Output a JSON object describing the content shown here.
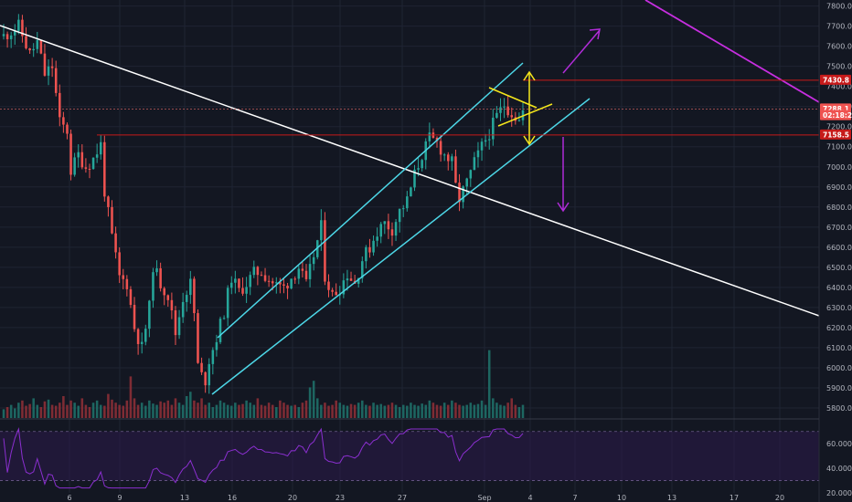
{
  "chart_data": {
    "type": "candlestick",
    "colors": {
      "background": "#131722",
      "up": "#26a69a",
      "down": "#ef5350",
      "up_volume": "#1f6f68",
      "down_volume": "#8c2f36",
      "grid": "#1f2433",
      "trendline": "#ffffff",
      "channel": "#4dd8e8",
      "triangle": "#f5e61b",
      "level": "#c61a1a",
      "arrow": "#b02cd8",
      "rsi_line": "#8b2fd0",
      "rsi_band": "#2b1a4a"
    },
    "price_axis": {
      "ticks": [
        "7800.0",
        "7700.0",
        "7600.0",
        "7500.0",
        "7400.0",
        "7300.0",
        "7200.0",
        "7100.0",
        "7000.0",
        "6900.0",
        "6800.0",
        "6700.0",
        "6600.0",
        "6500.0",
        "6400.0",
        "6300.0",
        "6200.0",
        "6100.0",
        "6000.0",
        "5900.0",
        "5800.0"
      ],
      "range": [
        5750,
        7830
      ]
    },
    "rsi_axis": {
      "ticks": [
        "60.0000",
        "40.0000",
        "20.0000"
      ],
      "range": [
        20,
        75
      ]
    },
    "x_axis": {
      "ticks": [
        "6",
        "9",
        "13",
        "16",
        "20",
        "23",
        "27",
        "Sep",
        "4",
        "7",
        "10",
        "13",
        "17",
        "20"
      ]
    },
    "price_tags": [
      {
        "label": "7430.8",
        "value": 7430.8,
        "color": "#c61a1a"
      },
      {
        "label": "7288.1",
        "value": 7288.1,
        "color": "#ef5350"
      },
      {
        "label": "02:18:28",
        "value": 7255,
        "color": "#ef5350"
      },
      {
        "label": "7158.5",
        "value": 7158.5,
        "color": "#c61a1a"
      }
    ],
    "levels": [
      7430.8,
      7288.1,
      7158.5
    ],
    "price_path": [
      [
        0,
        7650
      ],
      [
        4,
        7700
      ],
      [
        7,
        7560
      ],
      [
        9,
        7620
      ],
      [
        11,
        7460
      ],
      [
        13,
        7500
      ],
      [
        15,
        7220
      ],
      [
        17,
        7180
      ],
      [
        18,
        6980
      ],
      [
        20,
        7060
      ],
      [
        22,
        7000
      ],
      [
        24,
        7040
      ],
      [
        26,
        7110
      ],
      [
        27,
        6880
      ],
      [
        29,
        6650
      ],
      [
        31,
        6450
      ],
      [
        33,
        6420
      ],
      [
        35,
        6200
      ],
      [
        37,
        6100
      ],
      [
        39,
        6300
      ],
      [
        40,
        6510
      ],
      [
        42,
        6420
      ],
      [
        44,
        6360
      ],
      [
        46,
        6170
      ],
      [
        48,
        6350
      ],
      [
        50,
        6420
      ],
      [
        51,
        6270
      ],
      [
        52,
        6010
      ],
      [
        53,
        5960
      ],
      [
        54,
        5940
      ],
      [
        55,
        6040
      ],
      [
        57,
        6150
      ],
      [
        59,
        6280
      ],
      [
        61,
        6450
      ],
      [
        63,
        6380
      ],
      [
        65,
        6420
      ],
      [
        67,
        6470
      ],
      [
        69,
        6480
      ],
      [
        71,
        6440
      ],
      [
        73,
        6410
      ],
      [
        75,
        6400
      ],
      [
        77,
        6450
      ],
      [
        79,
        6500
      ],
      [
        81,
        6410
      ],
      [
        83,
        6560
      ],
      [
        85,
        6700
      ],
      [
        86,
        6460
      ],
      [
        88,
        6360
      ],
      [
        90,
        6400
      ],
      [
        92,
        6470
      ],
      [
        94,
        6420
      ],
      [
        96,
        6540
      ],
      [
        98,
        6600
      ],
      [
        100,
        6680
      ],
      [
        102,
        6720
      ],
      [
        104,
        6690
      ],
      [
        106,
        6780
      ],
      [
        108,
        6830
      ],
      [
        110,
        6960
      ],
      [
        112,
        7060
      ],
      [
        114,
        7140
      ],
      [
        116,
        7120
      ],
      [
        118,
        7060
      ],
      [
        120,
        7020
      ],
      [
        121,
        6900
      ],
      [
        122,
        6840
      ],
      [
        124,
        6920
      ],
      [
        126,
        7020
      ],
      [
        128,
        7100
      ],
      [
        130,
        7170
      ],
      [
        132,
        7250
      ],
      [
        134,
        7310
      ],
      [
        136,
        7270
      ],
      [
        138,
        7230
      ],
      [
        139,
        7275
      ]
    ],
    "volumes": [
      0.2,
      0.25,
      0.3,
      0.22,
      0.35,
      0.4,
      0.28,
      0.32,
      0.45,
      0.3,
      0.25,
      0.38,
      0.42,
      0.3,
      0.28,
      0.35,
      0.5,
      0.3,
      0.4,
      0.35,
      0.28,
      0.45,
      0.3,
      0.25,
      0.35,
      0.4,
      0.3,
      0.28,
      0.55,
      0.42,
      0.35,
      0.3,
      0.28,
      0.4,
      0.95,
      0.45,
      0.3,
      0.35,
      0.28,
      0.4,
      0.33,
      0.3,
      0.38,
      0.35,
      0.4,
      0.3,
      0.45,
      0.35,
      0.3,
      0.5,
      0.6,
      0.4,
      0.35,
      0.45,
      0.3,
      0.35,
      0.25,
      0.3,
      0.4,
      0.35,
      0.3,
      0.28,
      0.35,
      0.3,
      0.32,
      0.4,
      0.35,
      0.3,
      0.45,
      0.3,
      0.28,
      0.35,
      0.3,
      0.25,
      0.4,
      0.35,
      0.3,
      0.28,
      0.3,
      0.25,
      0.35,
      0.4,
      0.7,
      0.85,
      0.45,
      0.3,
      0.35,
      0.28,
      0.3,
      0.4,
      0.35,
      0.3,
      0.28,
      0.32,
      0.3,
      0.35,
      0.4,
      0.3,
      0.28,
      0.35,
      0.3,
      0.32,
      0.28,
      0.3,
      0.35,
      0.3,
      0.25,
      0.3,
      0.28,
      0.35,
      0.3,
      0.28,
      0.33,
      0.3,
      0.4,
      0.35,
      0.3,
      0.28,
      0.35,
      0.3,
      0.4,
      0.35,
      0.3,
      0.28,
      0.3,
      0.35,
      0.3,
      0.32,
      0.4,
      0.3,
      1.55,
      0.45,
      0.35,
      0.3,
      0.28,
      0.35,
      0.45,
      0.3,
      0.25,
      0.3
    ]
  }
}
